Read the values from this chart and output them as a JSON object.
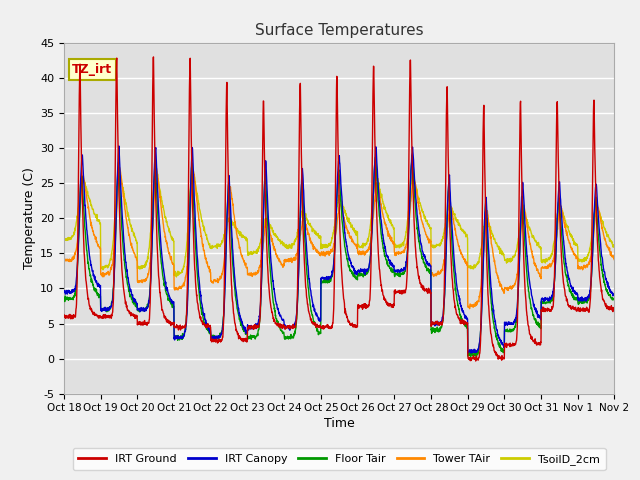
{
  "title": "Surface Temperatures",
  "xlabel": "Time",
  "ylabel": "Temperature (C)",
  "ylim": [
    -5,
    45
  ],
  "yticks": [
    -5,
    0,
    5,
    10,
    15,
    20,
    25,
    30,
    35,
    40,
    45
  ],
  "x_tick_labels": [
    "Oct 18",
    "Oct 19",
    "Oct 20",
    "Oct 21",
    "Oct 22",
    "Oct 23",
    "Oct 24",
    "Oct 25",
    "Oct 26",
    "Oct 27",
    "Oct 28",
    "Oct 29",
    "Oct 30",
    "Oct 31",
    "Nov 1",
    "Nov 2"
  ],
  "legend_labels": [
    "IRT Ground",
    "IRT Canopy",
    "Floor Tair",
    "Tower TAir",
    "TsoilD_2cm"
  ],
  "legend_colors": [
    "#cc0000",
    "#0000cc",
    "#009900",
    "#ff8800",
    "#cccc00"
  ],
  "annotation_text": "TZ_irt",
  "annotation_color": "#cc0000",
  "background_color": "#e0e0e0",
  "figure_bg": "#f0f0f0",
  "grid_color": "#ffffff",
  "num_days": 15,
  "points_per_day": 144,
  "night_min_red": [
    6.0,
    6.0,
    5.0,
    4.5,
    2.5,
    4.5,
    4.5,
    4.5,
    7.5,
    9.5,
    5.0,
    0.0,
    2.0,
    7.0,
    7.0
  ],
  "day_max_red": [
    42.0,
    43.0,
    43.0,
    43.0,
    39.5,
    37.0,
    39.5,
    40.5,
    42.0,
    43.0,
    39.0,
    36.5,
    37.0,
    37.0,
    37.0
  ],
  "night_min_blue": [
    9.5,
    7.0,
    7.0,
    3.0,
    3.0,
    4.5,
    4.5,
    11.5,
    12.5,
    12.5,
    5.0,
    1.0,
    5.0,
    8.5,
    8.5
  ],
  "day_max_blue": [
    29.0,
    30.0,
    30.0,
    30.0,
    26.0,
    28.0,
    27.0,
    29.0,
    30.0,
    30.0,
    26.0,
    23.0,
    25.0,
    25.0,
    25.0
  ],
  "night_min_green": [
    8.5,
    7.0,
    7.0,
    3.0,
    3.0,
    3.0,
    3.0,
    11.0,
    12.0,
    12.0,
    4.0,
    0.5,
    4.0,
    8.0,
    8.0
  ],
  "day_max_green": [
    26.0,
    28.0,
    28.0,
    28.0,
    25.0,
    27.0,
    26.0,
    27.0,
    29.0,
    29.0,
    25.0,
    22.0,
    23.0,
    23.0,
    23.0
  ],
  "night_min_orange": [
    14.0,
    12.0,
    11.0,
    10.0,
    11.0,
    12.0,
    14.0,
    15.0,
    15.0,
    15.0,
    12.0,
    7.5,
    10.0,
    13.0,
    13.0
  ],
  "day_max_orange": [
    26.0,
    27.0,
    27.0,
    27.0,
    24.5,
    20.0,
    20.0,
    22.0,
    25.0,
    26.0,
    22.0,
    21.0,
    22.0,
    22.0,
    22.0
  ],
  "night_min_yellow": [
    17.0,
    13.0,
    13.0,
    12.0,
    16.0,
    15.0,
    16.0,
    16.0,
    16.0,
    16.0,
    16.0,
    13.0,
    14.0,
    14.0,
    14.0
  ],
  "day_max_yellow": [
    26.0,
    27.0,
    27.0,
    27.0,
    20.0,
    20.0,
    21.0,
    23.0,
    26.0,
    26.0,
    22.0,
    20.0,
    21.0,
    22.0,
    22.0
  ]
}
